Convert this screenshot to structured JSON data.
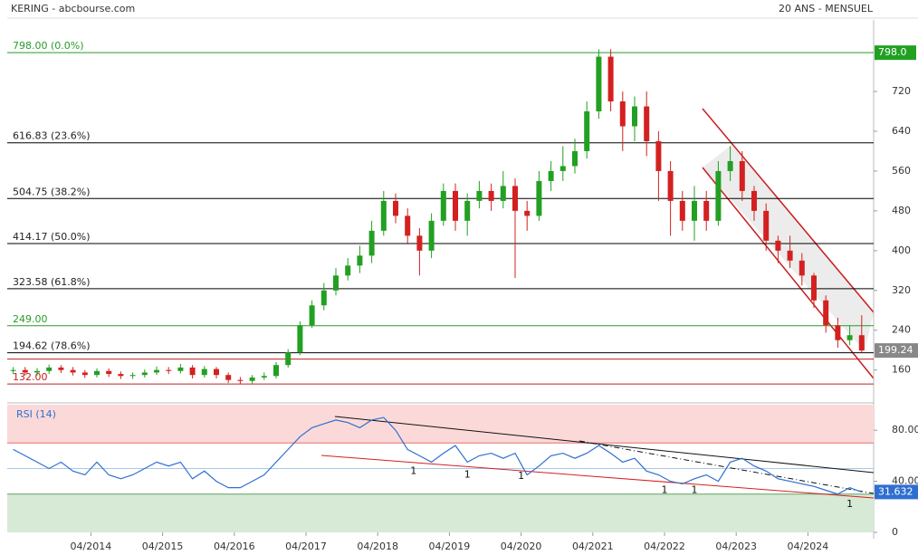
{
  "chart_data": [
    {
      "type": "candlestick",
      "title": "KERING - abcbourse.com",
      "subtitle": "20 ANS - MENSUEL",
      "x": [
        "03/2013",
        "05/2013",
        "07/2013",
        "09/2013",
        "11/2013",
        "01/2014",
        "03/2014",
        "05/2014",
        "07/2014",
        "09/2014",
        "11/2014",
        "01/2015",
        "03/2015",
        "05/2015",
        "07/2015",
        "09/2015",
        "11/2015",
        "01/2016",
        "03/2016",
        "05/2016",
        "07/2016",
        "09/2016",
        "11/2016",
        "01/2017",
        "03/2017",
        "05/2017",
        "07/2017",
        "09/2017",
        "11/2017",
        "01/2018",
        "03/2018",
        "05/2018",
        "07/2018",
        "09/2018",
        "11/2018",
        "01/2019",
        "03/2019",
        "05/2019",
        "07/2019",
        "09/2019",
        "11/2019",
        "01/2020",
        "03/2020",
        "05/2020",
        "07/2020",
        "09/2020",
        "11/2020",
        "01/2021",
        "03/2021",
        "05/2021",
        "07/2021",
        "09/2021",
        "11/2021",
        "01/2022",
        "03/2022",
        "05/2022",
        "07/2022",
        "09/2022",
        "11/2022",
        "01/2023",
        "03/2023",
        "05/2023",
        "07/2023",
        "09/2023",
        "11/2023",
        "01/2024",
        "03/2024",
        "05/2024",
        "07/2024",
        "09/2024",
        "11/2024",
        "01/2025"
      ],
      "open": [
        158,
        160,
        155,
        158,
        165,
        160,
        155,
        150,
        158,
        152,
        148,
        150,
        155,
        160,
        158,
        165,
        150,
        162,
        150,
        140,
        138,
        145,
        148,
        170,
        195,
        250,
        290,
        320,
        350,
        370,
        390,
        440,
        500,
        470,
        430,
        400,
        460,
        520,
        460,
        500,
        520,
        500,
        530,
        480,
        470,
        540,
        560,
        570,
        600,
        680,
        790,
        700,
        650,
        690,
        620,
        560,
        500,
        460,
        500,
        460,
        560,
        580,
        520,
        480,
        420,
        400,
        380,
        350,
        300,
        250,
        220,
        230
      ],
      "high": [
        166,
        166,
        164,
        171,
        170,
        166,
        160,
        163,
        163,
        157,
        155,
        161,
        167,
        166,
        172,
        170,
        168,
        166,
        155,
        146,
        150,
        155,
        176,
        202,
        258,
        300,
        335,
        365,
        385,
        410,
        460,
        520,
        515,
        485,
        445,
        475,
        535,
        535,
        515,
        540,
        535,
        560,
        545,
        500,
        560,
        580,
        610,
        625,
        700,
        805,
        805,
        720,
        710,
        720,
        640,
        580,
        520,
        530,
        520,
        580,
        610,
        600,
        530,
        495,
        430,
        430,
        395,
        355,
        310,
        265,
        250,
        270
      ],
      "low": [
        152,
        149,
        149,
        152,
        154,
        149,
        144,
        145,
        146,
        142,
        142,
        145,
        150,
        152,
        153,
        143,
        145,
        143,
        134,
        132,
        133,
        140,
        143,
        165,
        190,
        245,
        280,
        310,
        340,
        355,
        375,
        430,
        455,
        415,
        350,
        385,
        450,
        440,
        430,
        485,
        480,
        485,
        345,
        440,
        460,
        520,
        540,
        555,
        585,
        665,
        680,
        600,
        620,
        590,
        500,
        430,
        440,
        420,
        440,
        450,
        540,
        500,
        460,
        400,
        375,
        365,
        330,
        285,
        235,
        205,
        210,
        195
      ],
      "close": [
        160,
        155,
        158,
        165,
        160,
        155,
        150,
        158,
        152,
        148,
        150,
        155,
        160,
        158,
        165,
        150,
        162,
        150,
        140,
        138,
        145,
        148,
        170,
        195,
        250,
        290,
        320,
        350,
        370,
        390,
        440,
        500,
        470,
        430,
        400,
        460,
        520,
        460,
        500,
        520,
        500,
        530,
        480,
        470,
        540,
        560,
        570,
        600,
        680,
        790,
        700,
        650,
        690,
        620,
        560,
        500,
        460,
        500,
        460,
        560,
        580,
        520,
        480,
        420,
        400,
        380,
        350,
        300,
        250,
        220,
        230,
        199.24
      ],
      "up_color": "#22a022",
      "down_color": "#d42020",
      "xlim": [
        "02/2013",
        "03/2025"
      ],
      "ylim": [
        103,
        822
      ],
      "yticks": [
        160,
        240,
        320,
        400,
        480,
        560,
        640,
        720
      ],
      "marker_label": {
        "value": 798,
        "label": "798.0",
        "color": "#22a022"
      },
      "levels": [
        {
          "value": 798,
          "label": "798.00 (0.0%)",
          "color": "#2a9a2a"
        },
        {
          "value": 616.83,
          "label": "616.83 (23.6%)",
          "color": "#000000"
        },
        {
          "value": 504.75,
          "label": "504.75 (38.2%)",
          "color": "#000000"
        },
        {
          "value": 414.17,
          "label": "414.17 (50.0%)",
          "color": "#000000"
        },
        {
          "value": 323.58,
          "label": "323.58 (61.8%)",
          "color": "#000000"
        },
        {
          "value": 249,
          "label": "249.00",
          "color": "#2a9a2a"
        },
        {
          "value": 194.62,
          "label": "194.62 (78.6%)",
          "color": "#000000"
        },
        {
          "value": 182,
          "color": "#c02020"
        },
        {
          "value": 132,
          "label": "132.00",
          "color": "#c02020"
        }
      ]
    },
    {
      "type": "line",
      "title": "RSI (14)",
      "x": [
        "03/2013",
        "05/2013",
        "07/2013",
        "09/2013",
        "11/2013",
        "01/2014",
        "03/2014",
        "05/2014",
        "07/2014",
        "09/2014",
        "11/2014",
        "01/2015",
        "03/2015",
        "05/2015",
        "07/2015",
        "09/2015",
        "11/2015",
        "01/2016",
        "03/2016",
        "05/2016",
        "07/2016",
        "09/2016",
        "11/2016",
        "01/2017",
        "03/2017",
        "05/2017",
        "07/2017",
        "09/2017",
        "11/2017",
        "01/2018",
        "03/2018",
        "05/2018",
        "07/2018",
        "09/2018",
        "11/2018",
        "01/2019",
        "03/2019",
        "05/2019",
        "07/2019",
        "09/2019",
        "11/2019",
        "01/2020",
        "03/2020",
        "05/2020",
        "07/2020",
        "09/2020",
        "11/2020",
        "01/2021",
        "03/2021",
        "05/2021",
        "07/2021",
        "09/2021",
        "11/2021",
        "01/2022",
        "03/2022",
        "05/2022",
        "07/2022",
        "09/2022",
        "11/2022",
        "01/2023",
        "03/2023",
        "05/2023",
        "07/2023",
        "09/2023",
        "11/2023",
        "01/2024",
        "03/2024",
        "05/2024",
        "07/2024",
        "09/2024",
        "11/2024",
        "01/2025"
      ],
      "series": [
        {
          "name": "RSI (14)",
          "color": "#2f6fd0",
          "values": [
            65,
            60,
            55,
            50,
            55,
            48,
            45,
            55,
            45,
            42,
            45,
            50,
            55,
            52,
            55,
            42,
            48,
            40,
            35,
            35,
            40,
            45,
            55,
            65,
            75,
            82,
            85,
            88,
            86,
            82,
            88,
            90,
            80,
            65,
            60,
            55,
            62,
            68,
            55,
            60,
            62,
            58,
            62,
            45,
            52,
            60,
            62,
            58,
            62,
            68,
            62,
            55,
            58,
            48,
            45,
            40,
            38,
            42,
            45,
            40,
            55,
            58,
            52,
            48,
            42,
            40,
            38,
            36,
            33,
            30,
            35,
            31.632
          ]
        }
      ],
      "xlim": [
        "02/2013",
        "03/2025"
      ],
      "ylim": [
        0,
        100
      ],
      "yticks": [
        {
          "value": 80,
          "label": "80.00"
        },
        {
          "value": 40,
          "label": "40.00"
        },
        0
      ],
      "overbought": 70,
      "oversold": 30,
      "midline": 50,
      "xticks": [
        "04/2014",
        "04/2015",
        "04/2016",
        "04/2017",
        "04/2018",
        "04/2019",
        "04/2020",
        "04/2021",
        "04/2022",
        "04/2023",
        "04/2024"
      ],
      "annotations": [
        {
          "text": "1",
          "x": "10/2018",
          "y": 48
        },
        {
          "text": "1",
          "x": "07/2019",
          "y": 45
        },
        {
          "text": "1",
          "x": "04/2020",
          "y": 44
        },
        {
          "text": "1",
          "x": "04/2022",
          "y": 33
        },
        {
          "text": "1",
          "x": "09/2022",
          "y": 33
        },
        {
          "text": "1",
          "x": "11/2024",
          "y": 22
        }
      ]
    }
  ]
}
